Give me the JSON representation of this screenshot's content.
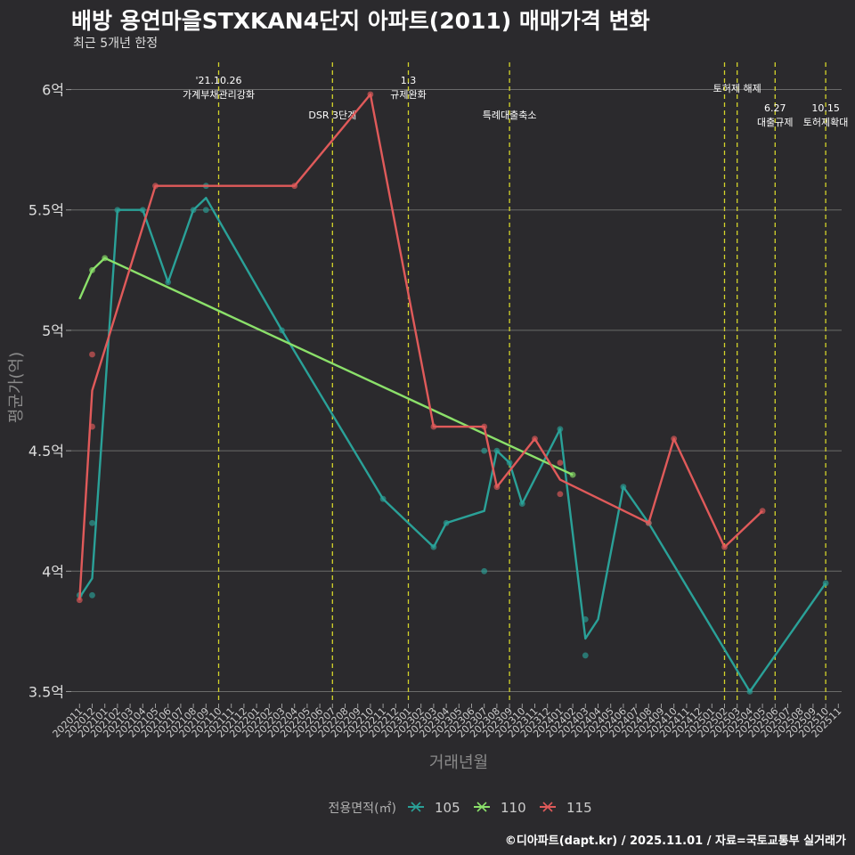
{
  "title": "배방 용연마을STXKAN4단지 아파트(2011) 매매가격 변화",
  "subtitle": "최근 5개년 한정",
  "footer": "©디아파트(dapt.kr) / 2025.11.01 / 자료=국토교통부 실거래가",
  "chart_data": {
    "type": "line",
    "xlabel": "거래년월",
    "ylabel": "평균가(억)",
    "ylim": [
      3.45,
      6.15
    ],
    "yticks": [
      3.5,
      4,
      4.5,
      5,
      5.5,
      6
    ],
    "ytick_labels": [
      "3.5억",
      "4억",
      "4.5억",
      "5억",
      "5.5억",
      "6억"
    ],
    "grid": true,
    "categories": [
      "202011",
      "202012",
      "202101",
      "202102",
      "202103",
      "202104",
      "202105",
      "202106",
      "202107",
      "202108",
      "202109",
      "202110",
      "202111",
      "202112",
      "202201",
      "202202",
      "202203",
      "202204",
      "202205",
      "202206",
      "202207",
      "202208",
      "202209",
      "202210",
      "202211",
      "202212",
      "202301",
      "202302",
      "202303",
      "202304",
      "202305",
      "202306",
      "202307",
      "202308",
      "202309",
      "202310",
      "202311",
      "202312",
      "202401",
      "202402",
      "202403",
      "202404",
      "202405",
      "202406",
      "202407",
      "202408",
      "202409",
      "202410",
      "202411",
      "202412",
      "202501",
      "202502",
      "202503",
      "202504",
      "202505",
      "202506",
      "202507",
      "202508",
      "202509",
      "202510",
      "202511"
    ],
    "legend_title": "전용면적(㎡)",
    "legend_position": "bottom",
    "series": [
      {
        "name": "105",
        "color": "#2aa198",
        "line": [
          [
            0,
            3.89
          ],
          [
            1,
            3.97
          ],
          [
            3,
            5.5
          ],
          [
            5,
            5.5
          ],
          [
            7,
            5.2
          ],
          [
            9,
            5.5
          ],
          [
            10,
            5.55
          ],
          [
            16,
            5.0
          ],
          [
            24,
            4.3
          ],
          [
            28,
            4.1
          ],
          [
            29,
            4.2
          ],
          [
            32,
            4.25
          ],
          [
            33,
            4.5
          ],
          [
            34,
            4.45
          ],
          [
            35,
            4.28
          ],
          [
            38,
            4.59
          ],
          [
            40,
            3.72
          ],
          [
            41,
            3.8
          ],
          [
            43,
            4.35
          ],
          [
            45,
            4.2
          ],
          [
            53,
            3.5
          ],
          [
            59,
            3.95
          ]
        ],
        "points": [
          [
            0,
            3.9
          ],
          [
            1,
            3.9
          ],
          [
            1,
            4.2
          ],
          [
            3,
            5.5
          ],
          [
            5,
            5.5
          ],
          [
            7,
            5.2
          ],
          [
            9,
            5.5
          ],
          [
            10,
            5.6
          ],
          [
            10,
            5.5
          ],
          [
            16,
            5.0
          ],
          [
            24,
            4.3
          ],
          [
            28,
            4.1
          ],
          [
            29,
            4.2
          ],
          [
            32,
            4.0
          ],
          [
            32,
            4.5
          ],
          [
            33,
            4.5
          ],
          [
            34,
            4.45
          ],
          [
            35,
            4.28
          ],
          [
            38,
            4.59
          ],
          [
            40,
            3.65
          ],
          [
            40,
            3.8
          ],
          [
            43,
            4.35
          ],
          [
            45,
            4.2
          ],
          [
            53,
            3.5
          ],
          [
            59,
            3.95
          ]
        ]
      },
      {
        "name": "110",
        "color": "#8be06a",
        "line": [
          [
            0,
            5.13
          ],
          [
            1,
            5.25
          ],
          [
            2,
            5.3
          ],
          [
            39,
            4.4
          ]
        ],
        "points": [
          [
            1,
            5.25
          ],
          [
            2,
            5.3
          ],
          [
            39,
            4.4
          ]
        ]
      },
      {
        "name": "115",
        "color": "#e05a5a",
        "line": [
          [
            0,
            3.88
          ],
          [
            1,
            4.75
          ],
          [
            6,
            5.6
          ],
          [
            17,
            5.6
          ],
          [
            23,
            5.98
          ],
          [
            28,
            4.6
          ],
          [
            32,
            4.6
          ],
          [
            33,
            4.35
          ],
          [
            36,
            4.55
          ],
          [
            38,
            4.38
          ],
          [
            45,
            4.2
          ],
          [
            47,
            4.55
          ],
          [
            51,
            4.1
          ],
          [
            54,
            4.25
          ]
        ],
        "points": [
          [
            0,
            3.88
          ],
          [
            1,
            4.6
          ],
          [
            1,
            4.9
          ],
          [
            6,
            5.6
          ],
          [
            17,
            5.6
          ],
          [
            23,
            5.98
          ],
          [
            28,
            4.6
          ],
          [
            32,
            4.6
          ],
          [
            33,
            4.35
          ],
          [
            36,
            4.55
          ],
          [
            38,
            4.45
          ],
          [
            38,
            4.32
          ],
          [
            45,
            4.2
          ],
          [
            47,
            4.55
          ],
          [
            51,
            4.1
          ],
          [
            54,
            4.25
          ]
        ]
      }
    ],
    "events": [
      {
        "x": 11,
        "lines": [
          "'21.10.26",
          "가계부채관리강화"
        ],
        "level": 0
      },
      {
        "x": 20,
        "lines": [
          "DSR 3단계"
        ],
        "level": 2
      },
      {
        "x": 26,
        "lines": [
          "1.3",
          "규제완화"
        ],
        "level": 0
      },
      {
        "x": 34,
        "lines": [
          "특례대출축소"
        ],
        "level": 2
      },
      {
        "x": 52,
        "lines": [
          "토허제 해제"
        ],
        "level": 1
      },
      {
        "x": 51,
        "lines": [],
        "level": 1
      },
      {
        "x": 55,
        "lines": [
          "6.27",
          "대출규제"
        ],
        "level": 3
      },
      {
        "x": 59,
        "lines": [
          "10.15",
          "토허제확대"
        ],
        "level": 3
      }
    ]
  }
}
